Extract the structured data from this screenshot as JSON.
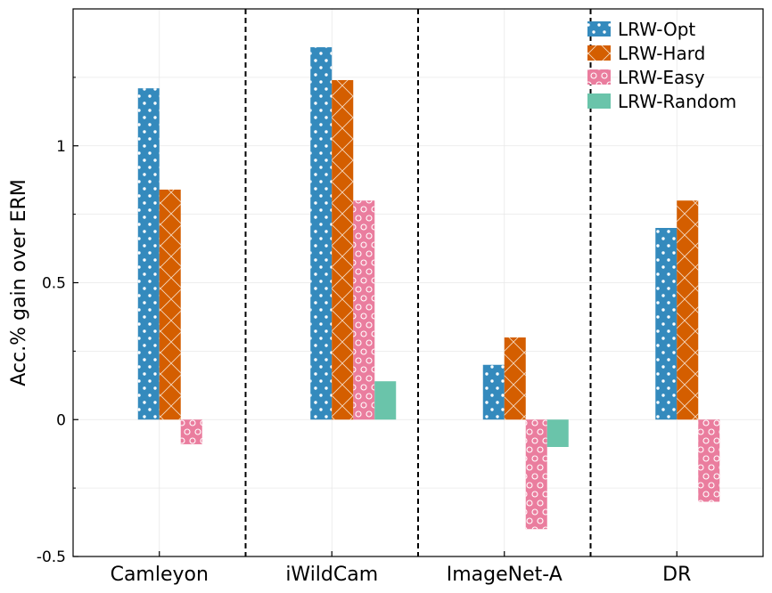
{
  "chart_data": {
    "type": "bar",
    "title": "",
    "xlabel": "",
    "ylabel": "Acc.% gain over ERM",
    "categories": [
      "Camleyon",
      "iWildCam",
      "ImageNet-A",
      "DR"
    ],
    "ylim": [
      -0.5,
      1.5
    ],
    "yticks": [
      -0.5,
      0,
      0.5,
      1
    ],
    "ytick_labels": [
      "-0.5",
      "0",
      "0.5",
      "1"
    ],
    "grid": true,
    "legend_position": "top-right",
    "series": [
      {
        "name": "LRW-Opt",
        "color": "#348ABD",
        "pattern": "dots",
        "values": [
          1.21,
          1.36,
          0.2,
          0.7
        ]
      },
      {
        "name": "LRW-Hard",
        "color": "#D45E00",
        "pattern": "crosshatch",
        "values": [
          0.84,
          1.24,
          0.3,
          0.8
        ]
      },
      {
        "name": "LRW-Easy",
        "color": "#EA7D9E",
        "pattern": "circles",
        "values": [
          -0.09,
          0.8,
          -0.4,
          -0.3
        ]
      },
      {
        "name": "LRW-Random",
        "color": "#6AC4AA",
        "pattern": "none",
        "values": [
          0,
          0.14,
          -0.1,
          0
        ]
      }
    ]
  }
}
